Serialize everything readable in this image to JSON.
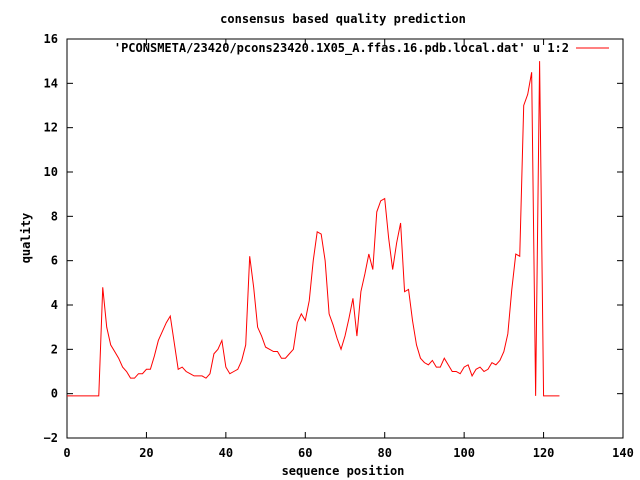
{
  "chart_data": {
    "type": "line",
    "title": "consensus based quality prediction",
    "xlabel": "sequence position",
    "ylabel": "quality",
    "xlim": [
      0,
      140
    ],
    "ylim": [
      -2,
      16
    ],
    "xticks": [
      "0",
      "20",
      "40",
      "60",
      "80",
      "100",
      "120",
      "140"
    ],
    "yticks": [
      "−2",
      "0",
      "2",
      "4",
      "6",
      "8",
      "10",
      "12",
      "14",
      "16"
    ],
    "grid": false,
    "legend_position": "top-right",
    "series": [
      {
        "name": "'PCONSMETA/23420/pcons23420.1X05_A.ffas.16.pdb.local.dat' u 1:2",
        "color": "#ff0000",
        "x": [
          0,
          1,
          2,
          3,
          4,
          5,
          6,
          7,
          8,
          9,
          10,
          11,
          12,
          13,
          14,
          15,
          16,
          17,
          18,
          19,
          20,
          21,
          22,
          23,
          24,
          25,
          26,
          27,
          28,
          29,
          30,
          31,
          32,
          33,
          34,
          35,
          36,
          37,
          38,
          39,
          40,
          41,
          42,
          43,
          44,
          45,
          46,
          47,
          48,
          49,
          50,
          51,
          52,
          53,
          54,
          55,
          56,
          57,
          58,
          59,
          60,
          61,
          62,
          63,
          64,
          65,
          66,
          67,
          68,
          69,
          70,
          71,
          72,
          73,
          74,
          75,
          76,
          77,
          78,
          79,
          80,
          81,
          82,
          83,
          84,
          85,
          86,
          87,
          88,
          89,
          90,
          91,
          92,
          93,
          94,
          95,
          96,
          97,
          98,
          99,
          100,
          101,
          102,
          103,
          104,
          105,
          106,
          107,
          108,
          109,
          110,
          111,
          112,
          113,
          114,
          115,
          116,
          117,
          118,
          119,
          120,
          121,
          122,
          123,
          124
        ],
        "y": [
          -0.1,
          -0.1,
          -0.1,
          -0.1,
          -0.1,
          -0.1,
          -0.1,
          -0.1,
          -0.1,
          4.8,
          3.0,
          2.2,
          1.9,
          1.6,
          1.2,
          1.0,
          0.7,
          0.7,
          0.9,
          0.9,
          1.1,
          1.1,
          1.7,
          2.4,
          2.8,
          3.2,
          3.5,
          2.3,
          1.1,
          1.2,
          1.0,
          0.9,
          0.8,
          0.8,
          0.8,
          0.7,
          0.9,
          1.8,
          2.0,
          2.4,
          1.2,
          0.9,
          1.0,
          1.1,
          1.5,
          2.2,
          6.2,
          4.8,
          3.0,
          2.6,
          2.1,
          2.0,
          1.9,
          1.9,
          1.6,
          1.6,
          1.8,
          2.0,
          3.2,
          3.6,
          3.3,
          4.2,
          6.0,
          7.3,
          7.2,
          6.0,
          3.6,
          3.1,
          2.5,
          2.0,
          2.6,
          3.4,
          4.3,
          2.6,
          4.6,
          5.4,
          6.3,
          5.6,
          8.2,
          8.7,
          8.8,
          7.0,
          5.6,
          6.8,
          7.7,
          4.6,
          4.7,
          3.3,
          2.2,
          1.6,
          1.4,
          1.3,
          1.5,
          1.2,
          1.2,
          1.6,
          1.3,
          1.0,
          1.0,
          0.9,
          1.2,
          1.3,
          0.8,
          1.1,
          1.2,
          1.0,
          1.1,
          1.4,
          1.3,
          1.5,
          1.9,
          2.7,
          4.7,
          6.3,
          6.2,
          13.0,
          13.5,
          14.5,
          -0.1,
          15.0,
          -0.1,
          -0.1,
          -0.1,
          -0.1,
          -0.1
        ]
      }
    ]
  }
}
